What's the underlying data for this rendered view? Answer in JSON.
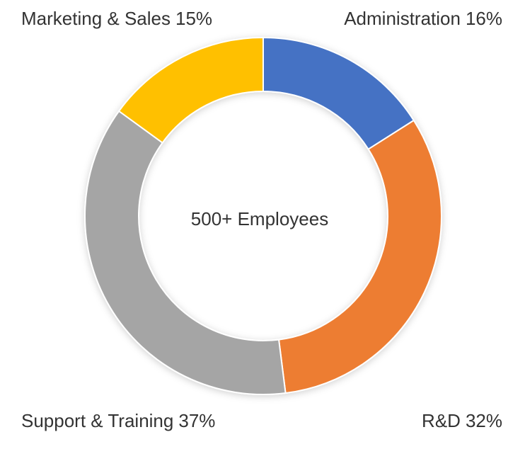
{
  "chart_data": {
    "type": "donut",
    "center_label": "500+ Employees",
    "categories": [
      "Administration",
      "R&D",
      "Support & Training",
      "Marketing & Sales"
    ],
    "values": [
      16,
      32,
      37,
      15
    ],
    "value_labels": [
      "16%",
      "32%",
      "37%",
      "15%"
    ],
    "colors": [
      "#4472c4",
      "#ed7d31",
      "#a5a5a5",
      "#ffc000"
    ]
  }
}
